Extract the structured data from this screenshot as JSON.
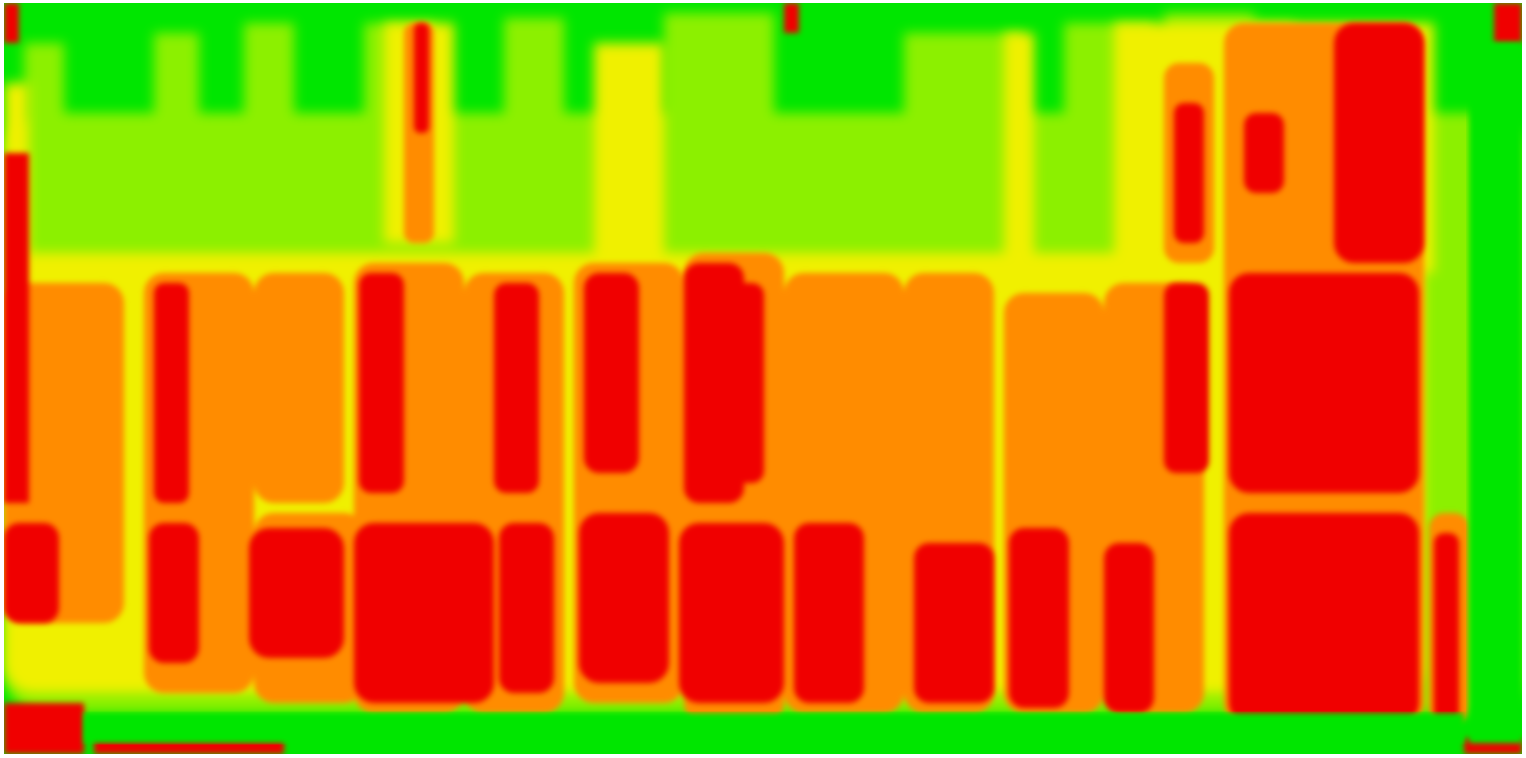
{
  "map": {
    "type": "classified-contour-heatmap",
    "legend_visible": false,
    "classes": [
      {
        "level": 0,
        "color": "#00e600"
      },
      {
        "level": 1,
        "color": "#8cf000"
      },
      {
        "level": 2,
        "color": "#f0f000"
      },
      {
        "level": 3,
        "color": "#ff8c00"
      },
      {
        "level": 4,
        "color": "#f00000"
      }
    ]
  }
}
